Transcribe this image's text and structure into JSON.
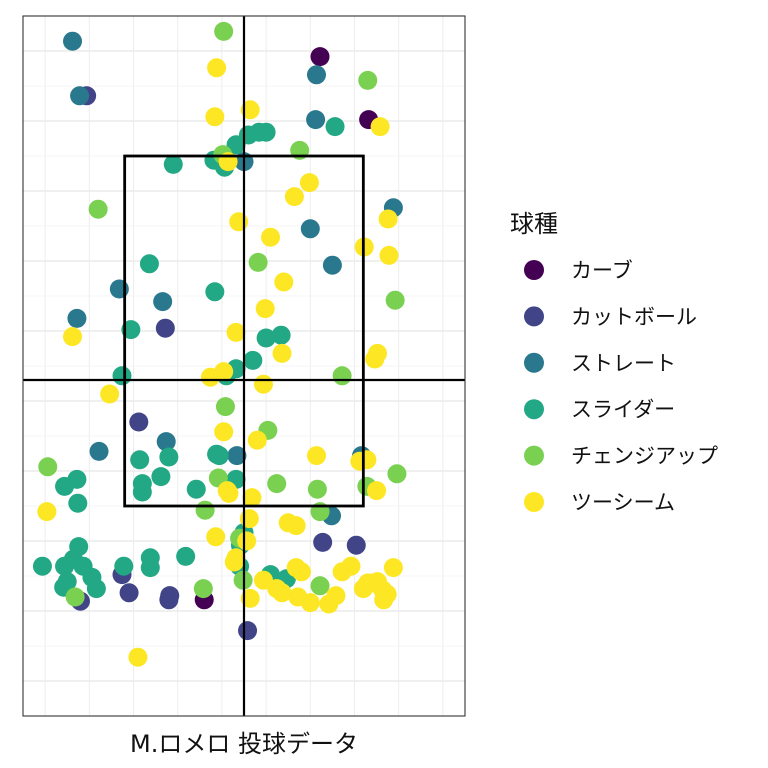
{
  "chart_data": {
    "type": "scatter",
    "title": "",
    "xlabel": "M.ロメロ 投球データ",
    "ylabel": "",
    "xlim": [
      -2.5,
      2.5
    ],
    "ylim": [
      0.0,
      5.0
    ],
    "grid": true,
    "axis_ticks_visible": false,
    "strike_zone": {
      "x": [
        -1.35,
        1.35
      ],
      "y": [
        1.5,
        4.0
      ]
    },
    "center_lines": {
      "x": 0.0,
      "y": 2.4
    },
    "legend": {
      "title": "球種",
      "position": "right",
      "items": [
        {
          "name": "カーブ",
          "color": "#440154"
        },
        {
          "name": "カットボール",
          "color": "#414487"
        },
        {
          "name": "ストレート",
          "color": "#2a788e"
        },
        {
          "name": "スライダー",
          "color": "#22a884"
        },
        {
          "name": "チェンジアップ",
          "color": "#7ad151"
        },
        {
          "name": "ツーシーム",
          "color": "#fde725"
        }
      ]
    },
    "series": [
      {
        "name": "カーブ",
        "color": "#440154",
        "points": [
          [
            0.86,
            4.71
          ],
          [
            1.41,
            4.26
          ],
          [
            -0.45,
            0.83
          ]
        ]
      },
      {
        "name": "カットボール",
        "color": "#414487",
        "points": [
          [
            -1.78,
            4.43
          ],
          [
            -0.89,
            2.77
          ],
          [
            -1.19,
            2.1
          ],
          [
            1.27,
            1.22
          ],
          [
            0.89,
            1.24
          ],
          [
            -1.38,
            1.01
          ],
          [
            -1.3,
            0.88
          ],
          [
            -0.84,
            0.86
          ],
          [
            0.04,
            0.61
          ],
          [
            -1.85,
            0.82
          ],
          [
            -0.85,
            0.83
          ]
        ]
      },
      {
        "name": "ストレート",
        "color": "#2a788e",
        "points": [
          [
            -1.94,
            4.82
          ],
          [
            -1.86,
            4.43
          ],
          [
            0.82,
            4.58
          ],
          [
            0.81,
            4.26
          ],
          [
            1.69,
            3.63
          ],
          [
            0.75,
            3.48
          ],
          [
            1.0,
            3.22
          ],
          [
            -1.41,
            3.05
          ],
          [
            -0.92,
            2.96
          ],
          [
            -1.89,
            2.84
          ],
          [
            0.0,
            3.96
          ],
          [
            -0.88,
            1.96
          ],
          [
            -1.64,
            1.89
          ],
          [
            -0.08,
            1.86
          ],
          [
            1.33,
            1.86
          ],
          [
            0.99,
            1.43
          ]
        ]
      },
      {
        "name": "スライダー",
        "color": "#22a884",
        "points": [
          [
            -0.8,
            3.94
          ],
          [
            -0.34,
            3.97
          ],
          [
            -0.22,
            3.92
          ],
          [
            -0.09,
            4.08
          ],
          [
            0.05,
            4.15
          ],
          [
            0.17,
            4.17
          ],
          [
            0.25,
            4.17
          ],
          [
            1.03,
            4.21
          ],
          [
            -1.07,
            3.23
          ],
          [
            -0.33,
            3.03
          ],
          [
            -1.28,
            2.76
          ],
          [
            0.42,
            2.72
          ],
          [
            0.25,
            2.7
          ],
          [
            0.1,
            2.54
          ],
          [
            -0.09,
            2.48
          ],
          [
            -0.2,
            2.43
          ],
          [
            -1.38,
            2.43
          ],
          [
            -1.18,
            1.83
          ],
          [
            -0.85,
            1.85
          ],
          [
            -0.94,
            1.71
          ],
          [
            -1.15,
            1.66
          ],
          [
            -1.15,
            1.6
          ],
          [
            -0.31,
            1.87
          ],
          [
            -0.28,
            1.86
          ],
          [
            -0.09,
            1.69
          ],
          [
            -0.54,
            1.62
          ],
          [
            -1.89,
            1.69
          ],
          [
            -2.03,
            1.64
          ],
          [
            -1.88,
            1.52
          ],
          [
            -1.87,
            1.21
          ],
          [
            -2.28,
            1.07
          ],
          [
            -2.03,
            1.07
          ],
          [
            -1.93,
            1.12
          ],
          [
            -1.82,
            1.07
          ],
          [
            -1.72,
            0.99
          ],
          [
            -1.67,
            0.91
          ],
          [
            -2.04,
            0.92
          ],
          [
            -2.0,
            0.96
          ],
          [
            -1.36,
            1.07
          ],
          [
            -1.06,
            1.06
          ],
          [
            -1.06,
            1.13
          ],
          [
            -0.66,
            1.14
          ],
          [
            0.0,
            1.31
          ],
          [
            -0.04,
            1.22
          ],
          [
            -0.05,
            1.07
          ],
          [
            0.3,
            1.01
          ],
          [
            0.48,
            0.98
          ]
        ]
      },
      {
        "name": "チェンジアップ",
        "color": "#7ad151",
        "points": [
          [
            -0.23,
            4.89
          ],
          [
            1.4,
            4.54
          ],
          [
            -0.24,
            4.01
          ],
          [
            0.63,
            4.04
          ],
          [
            -1.65,
            3.62
          ],
          [
            0.16,
            3.24
          ],
          [
            1.71,
            2.97
          ],
          [
            1.11,
            2.43
          ],
          [
            -0.21,
            2.21
          ],
          [
            0.27,
            2.04
          ],
          [
            -2.22,
            1.78
          ],
          [
            -0.29,
            1.7
          ],
          [
            0.37,
            1.66
          ],
          [
            0.83,
            1.62
          ],
          [
            1.39,
            1.64
          ],
          [
            1.73,
            1.73
          ],
          [
            -0.44,
            1.47
          ],
          [
            0.86,
            1.46
          ],
          [
            -0.05,
            1.27
          ],
          [
            -0.46,
            0.91
          ],
          [
            0.86,
            0.93
          ],
          [
            -1.91,
            0.85
          ],
          [
            -0.01,
            0.97
          ]
        ]
      },
      {
        "name": "ツーシーム",
        "color": "#fde725",
        "points": [
          [
            -0.31,
            4.63
          ],
          [
            0.07,
            4.33
          ],
          [
            -0.33,
            4.28
          ],
          [
            1.54,
            4.21
          ],
          [
            -0.18,
            3.96
          ],
          [
            0.74,
            3.81
          ],
          [
            0.57,
            3.71
          ],
          [
            1.63,
            3.55
          ],
          [
            -0.06,
            3.53
          ],
          [
            0.3,
            3.42
          ],
          [
            1.36,
            3.35
          ],
          [
            1.64,
            3.29
          ],
          [
            0.45,
            3.1
          ],
          [
            0.24,
            2.91
          ],
          [
            -1.94,
            2.71
          ],
          [
            -0.09,
            2.74
          ],
          [
            0.43,
            2.59
          ],
          [
            1.51,
            2.59
          ],
          [
            1.48,
            2.55
          ],
          [
            -0.38,
            2.42
          ],
          [
            -0.23,
            2.46
          ],
          [
            0.22,
            2.37
          ],
          [
            -1.52,
            2.3
          ],
          [
            -0.23,
            2.03
          ],
          [
            0.15,
            1.97
          ],
          [
            0.82,
            1.86
          ],
          [
            1.31,
            1.82
          ],
          [
            1.39,
            1.83
          ],
          [
            -2.23,
            1.46
          ],
          [
            -0.19,
            1.61
          ],
          [
            -0.17,
            1.59
          ],
          [
            0.09,
            1.56
          ],
          [
            1.5,
            1.61
          ],
          [
            0.06,
            1.41
          ],
          [
            0.5,
            1.38
          ],
          [
            -0.32,
            1.28
          ],
          [
            0.03,
            1.25
          ],
          [
            0.59,
            1.36
          ],
          [
            -0.09,
            1.13
          ],
          [
            -0.11,
            1.1
          ],
          [
            0.59,
            1.06
          ],
          [
            1.11,
            1.03
          ],
          [
            0.65,
            1.03
          ],
          [
            1.21,
            1.07
          ],
          [
            1.69,
            1.06
          ],
          [
            1.35,
            0.91
          ],
          [
            1.4,
            0.95
          ],
          [
            1.45,
            0.95
          ],
          [
            1.51,
            0.96
          ],
          [
            1.57,
            0.9
          ],
          [
            1.62,
            0.87
          ],
          [
            1.58,
            0.83
          ],
          [
            -1.2,
            0.42
          ],
          [
            0.22,
            0.97
          ],
          [
            0.37,
            0.91
          ],
          [
            0.43,
            0.88
          ],
          [
            0.61,
            0.85
          ],
          [
            0.75,
            0.81
          ],
          [
            0.96,
            0.8
          ],
          [
            1.04,
            0.86
          ],
          [
            0.07,
            0.84
          ]
        ]
      }
    ]
  }
}
